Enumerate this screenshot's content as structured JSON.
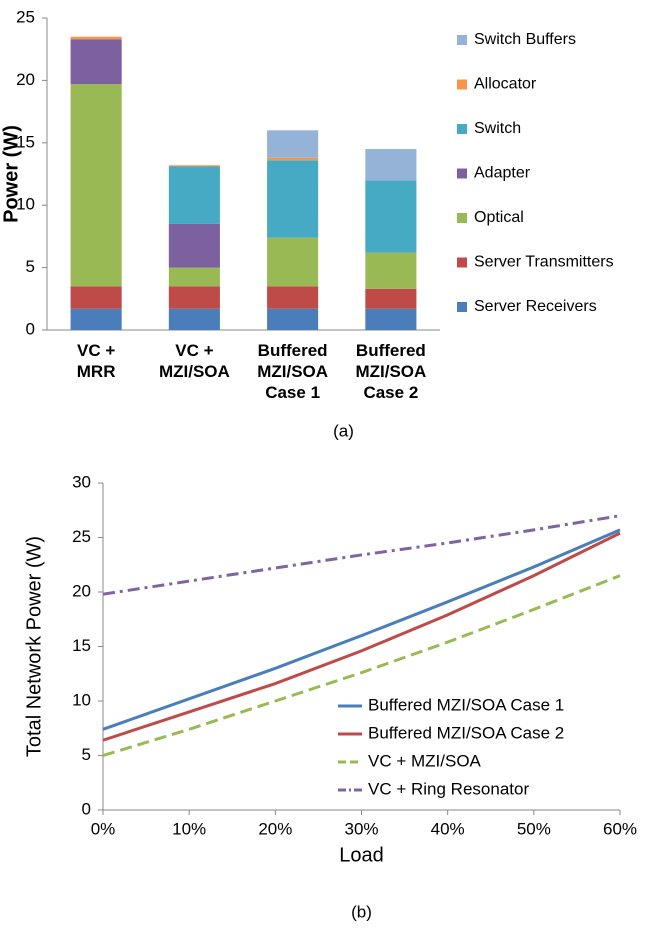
{
  "chart_data": [
    {
      "type": "bar",
      "stacked": true,
      "caption": "(a)",
      "ylabel": "Power (W)",
      "categories": [
        [
          "VC +",
          "MRR"
        ],
        [
          "VC +",
          "MZI/SOA"
        ],
        [
          "Buffered",
          "MZI/SOA",
          "Case 1"
        ],
        [
          "Buffered",
          "MZI/SOA",
          "Case 2"
        ]
      ],
      "ylim": [
        0,
        25
      ],
      "yticks": [
        0,
        5,
        10,
        15,
        20,
        25
      ],
      "series": [
        {
          "name": "Server Receivers",
          "color": "#4a7ebb",
          "values": [
            1.7,
            1.7,
            1.7,
            1.7
          ]
        },
        {
          "name": "Server Transmitters",
          "color": "#be4b48",
          "values": [
            1.8,
            1.8,
            1.8,
            1.6
          ]
        },
        {
          "name": "Optical",
          "color": "#98b954",
          "values": [
            16.2,
            1.5,
            3.9,
            2.9
          ]
        },
        {
          "name": "Adapter",
          "color": "#7d60a0",
          "values": [
            3.6,
            3.5,
            0,
            0
          ]
        },
        {
          "name": "Switch",
          "color": "#46aac5",
          "values": [
            0,
            4.6,
            6.2,
            5.8
          ]
        },
        {
          "name": "Allocator",
          "color": "#f79646",
          "values": [
            0.2,
            0.1,
            0.2,
            0
          ]
        },
        {
          "name": "Switch Buffers",
          "color": "#95b3d7",
          "values": [
            0,
            0,
            2.2,
            2.5
          ]
        }
      ],
      "legend": "right"
    },
    {
      "type": "line",
      "caption": "(b)",
      "xlabel": "Load",
      "ylabel": "Total Network Power (W)",
      "x": [
        0,
        10,
        20,
        30,
        40,
        50,
        60
      ],
      "xlim": [
        0,
        60
      ],
      "xticks": [
        {
          "value": 0,
          "label": "0%"
        },
        {
          "value": 10,
          "label": "10%"
        },
        {
          "value": 20,
          "label": "20%"
        },
        {
          "value": 30,
          "label": "30%"
        },
        {
          "value": 40,
          "label": "40%"
        },
        {
          "value": 50,
          "label": "50%"
        },
        {
          "value": 60,
          "label": "60%"
        }
      ],
      "ylim": [
        0,
        30
      ],
      "yticks": [
        0,
        5,
        10,
        15,
        20,
        25,
        30
      ],
      "series": [
        {
          "name": "Buffered MZI/SOA Case 1",
          "color": "#4a7ebb",
          "style": "solid",
          "values": [
            7.4,
            10.2,
            13.0,
            16.0,
            19.1,
            22.3,
            25.7
          ]
        },
        {
          "name": "Buffered MZI/SOA Case 2",
          "color": "#be4b48",
          "style": "solid",
          "values": [
            6.4,
            9.0,
            11.6,
            14.6,
            17.9,
            21.5,
            25.4
          ]
        },
        {
          "name": "VC + MZI/SOA",
          "color": "#98b954",
          "style": "dashed",
          "values": [
            5.0,
            7.4,
            10.0,
            12.6,
            15.4,
            18.4,
            21.5
          ]
        },
        {
          "name": "VC + Ring Resonator",
          "color": "#8064a2",
          "style": "dashdot",
          "values": [
            19.8,
            21.0,
            22.2,
            23.4,
            24.5,
            25.7,
            27.0
          ]
        }
      ],
      "legend": "lower right"
    }
  ]
}
